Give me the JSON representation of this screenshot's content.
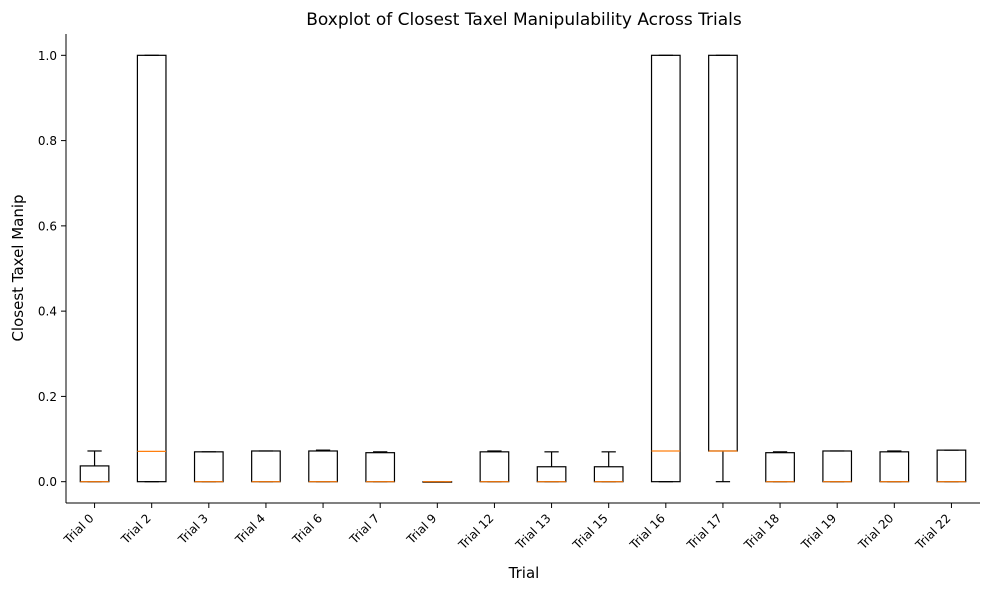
{
  "chart_data": {
    "type": "boxplot",
    "title": "Boxplot of Closest Taxel Manipulability Across Trials",
    "xlabel": "Trial",
    "ylabel": "Closest Taxel Manip",
    "ylim": [
      -0.05,
      1.05
    ],
    "yticks": [
      0.0,
      0.2,
      0.4,
      0.6,
      0.8,
      1.0
    ],
    "ytick_labels": [
      "0.0",
      "0.2",
      "0.4",
      "0.6",
      "0.8",
      "1.0"
    ],
    "grid": false,
    "categories": [
      "Trial 0",
      "Trial 2",
      "Trial 3",
      "Trial 4",
      "Trial 6",
      "Trial 7",
      "Trial 9",
      "Trial 12",
      "Trial 13",
      "Trial 15",
      "Trial 16",
      "Trial 17",
      "Trial 18",
      "Trial 19",
      "Trial 20",
      "Trial 22"
    ],
    "boxes": [
      {
        "label": "Trial 0",
        "whislo": 0.0,
        "q1": 0.0,
        "med": 0.0,
        "q3": 0.037,
        "whishi": 0.072
      },
      {
        "label": "Trial 2",
        "whislo": 0.0,
        "q1": 0.0,
        "med": 0.071,
        "q3": 1.0,
        "whishi": 1.0
      },
      {
        "label": "Trial 3",
        "whislo": 0.0,
        "q1": 0.0,
        "med": 0.0,
        "q3": 0.07,
        "whishi": 0.07
      },
      {
        "label": "Trial 4",
        "whislo": 0.0,
        "q1": 0.0,
        "med": 0.0,
        "q3": 0.072,
        "whishi": 0.072
      },
      {
        "label": "Trial 6",
        "whislo": 0.0,
        "q1": 0.0,
        "med": 0.0,
        "q3": 0.072,
        "whishi": 0.074
      },
      {
        "label": "Trial 7",
        "whislo": 0.0,
        "q1": 0.0,
        "med": 0.0,
        "q3": 0.068,
        "whishi": 0.07
      },
      {
        "label": "Trial 9",
        "whislo": 0.0,
        "q1": 0.0,
        "med": 0.0,
        "q3": 0.0,
        "whishi": 0.0
      },
      {
        "label": "Trial 12",
        "whislo": 0.0,
        "q1": 0.0,
        "med": 0.0,
        "q3": 0.07,
        "whishi": 0.072
      },
      {
        "label": "Trial 13",
        "whislo": 0.0,
        "q1": 0.0,
        "med": 0.0,
        "q3": 0.035,
        "whishi": 0.07
      },
      {
        "label": "Trial 15",
        "whislo": 0.0,
        "q1": 0.0,
        "med": 0.0,
        "q3": 0.035,
        "whishi": 0.07
      },
      {
        "label": "Trial 16",
        "whislo": 0.0,
        "q1": 0.0,
        "med": 0.072,
        "q3": 1.0,
        "whishi": 1.0
      },
      {
        "label": "Trial 17",
        "whislo": 0.0,
        "q1": 0.072,
        "med": 0.072,
        "q3": 1.0,
        "whishi": 1.0
      },
      {
        "label": "Trial 18",
        "whislo": 0.0,
        "q1": 0.0,
        "med": 0.0,
        "q3": 0.068,
        "whishi": 0.07
      },
      {
        "label": "Trial 19",
        "whislo": 0.0,
        "q1": 0.0,
        "med": 0.0,
        "q3": 0.072,
        "whishi": 0.072
      },
      {
        "label": "Trial 20",
        "whislo": 0.0,
        "q1": 0.0,
        "med": 0.0,
        "q3": 0.07,
        "whishi": 0.072
      },
      {
        "label": "Trial 22",
        "whislo": 0.0,
        "q1": 0.0,
        "med": 0.0,
        "q3": 0.074,
        "whishi": 0.074
      }
    ],
    "colors": {
      "box": "#000000",
      "median": "#ff7f0e",
      "axis": "#000000"
    }
  }
}
